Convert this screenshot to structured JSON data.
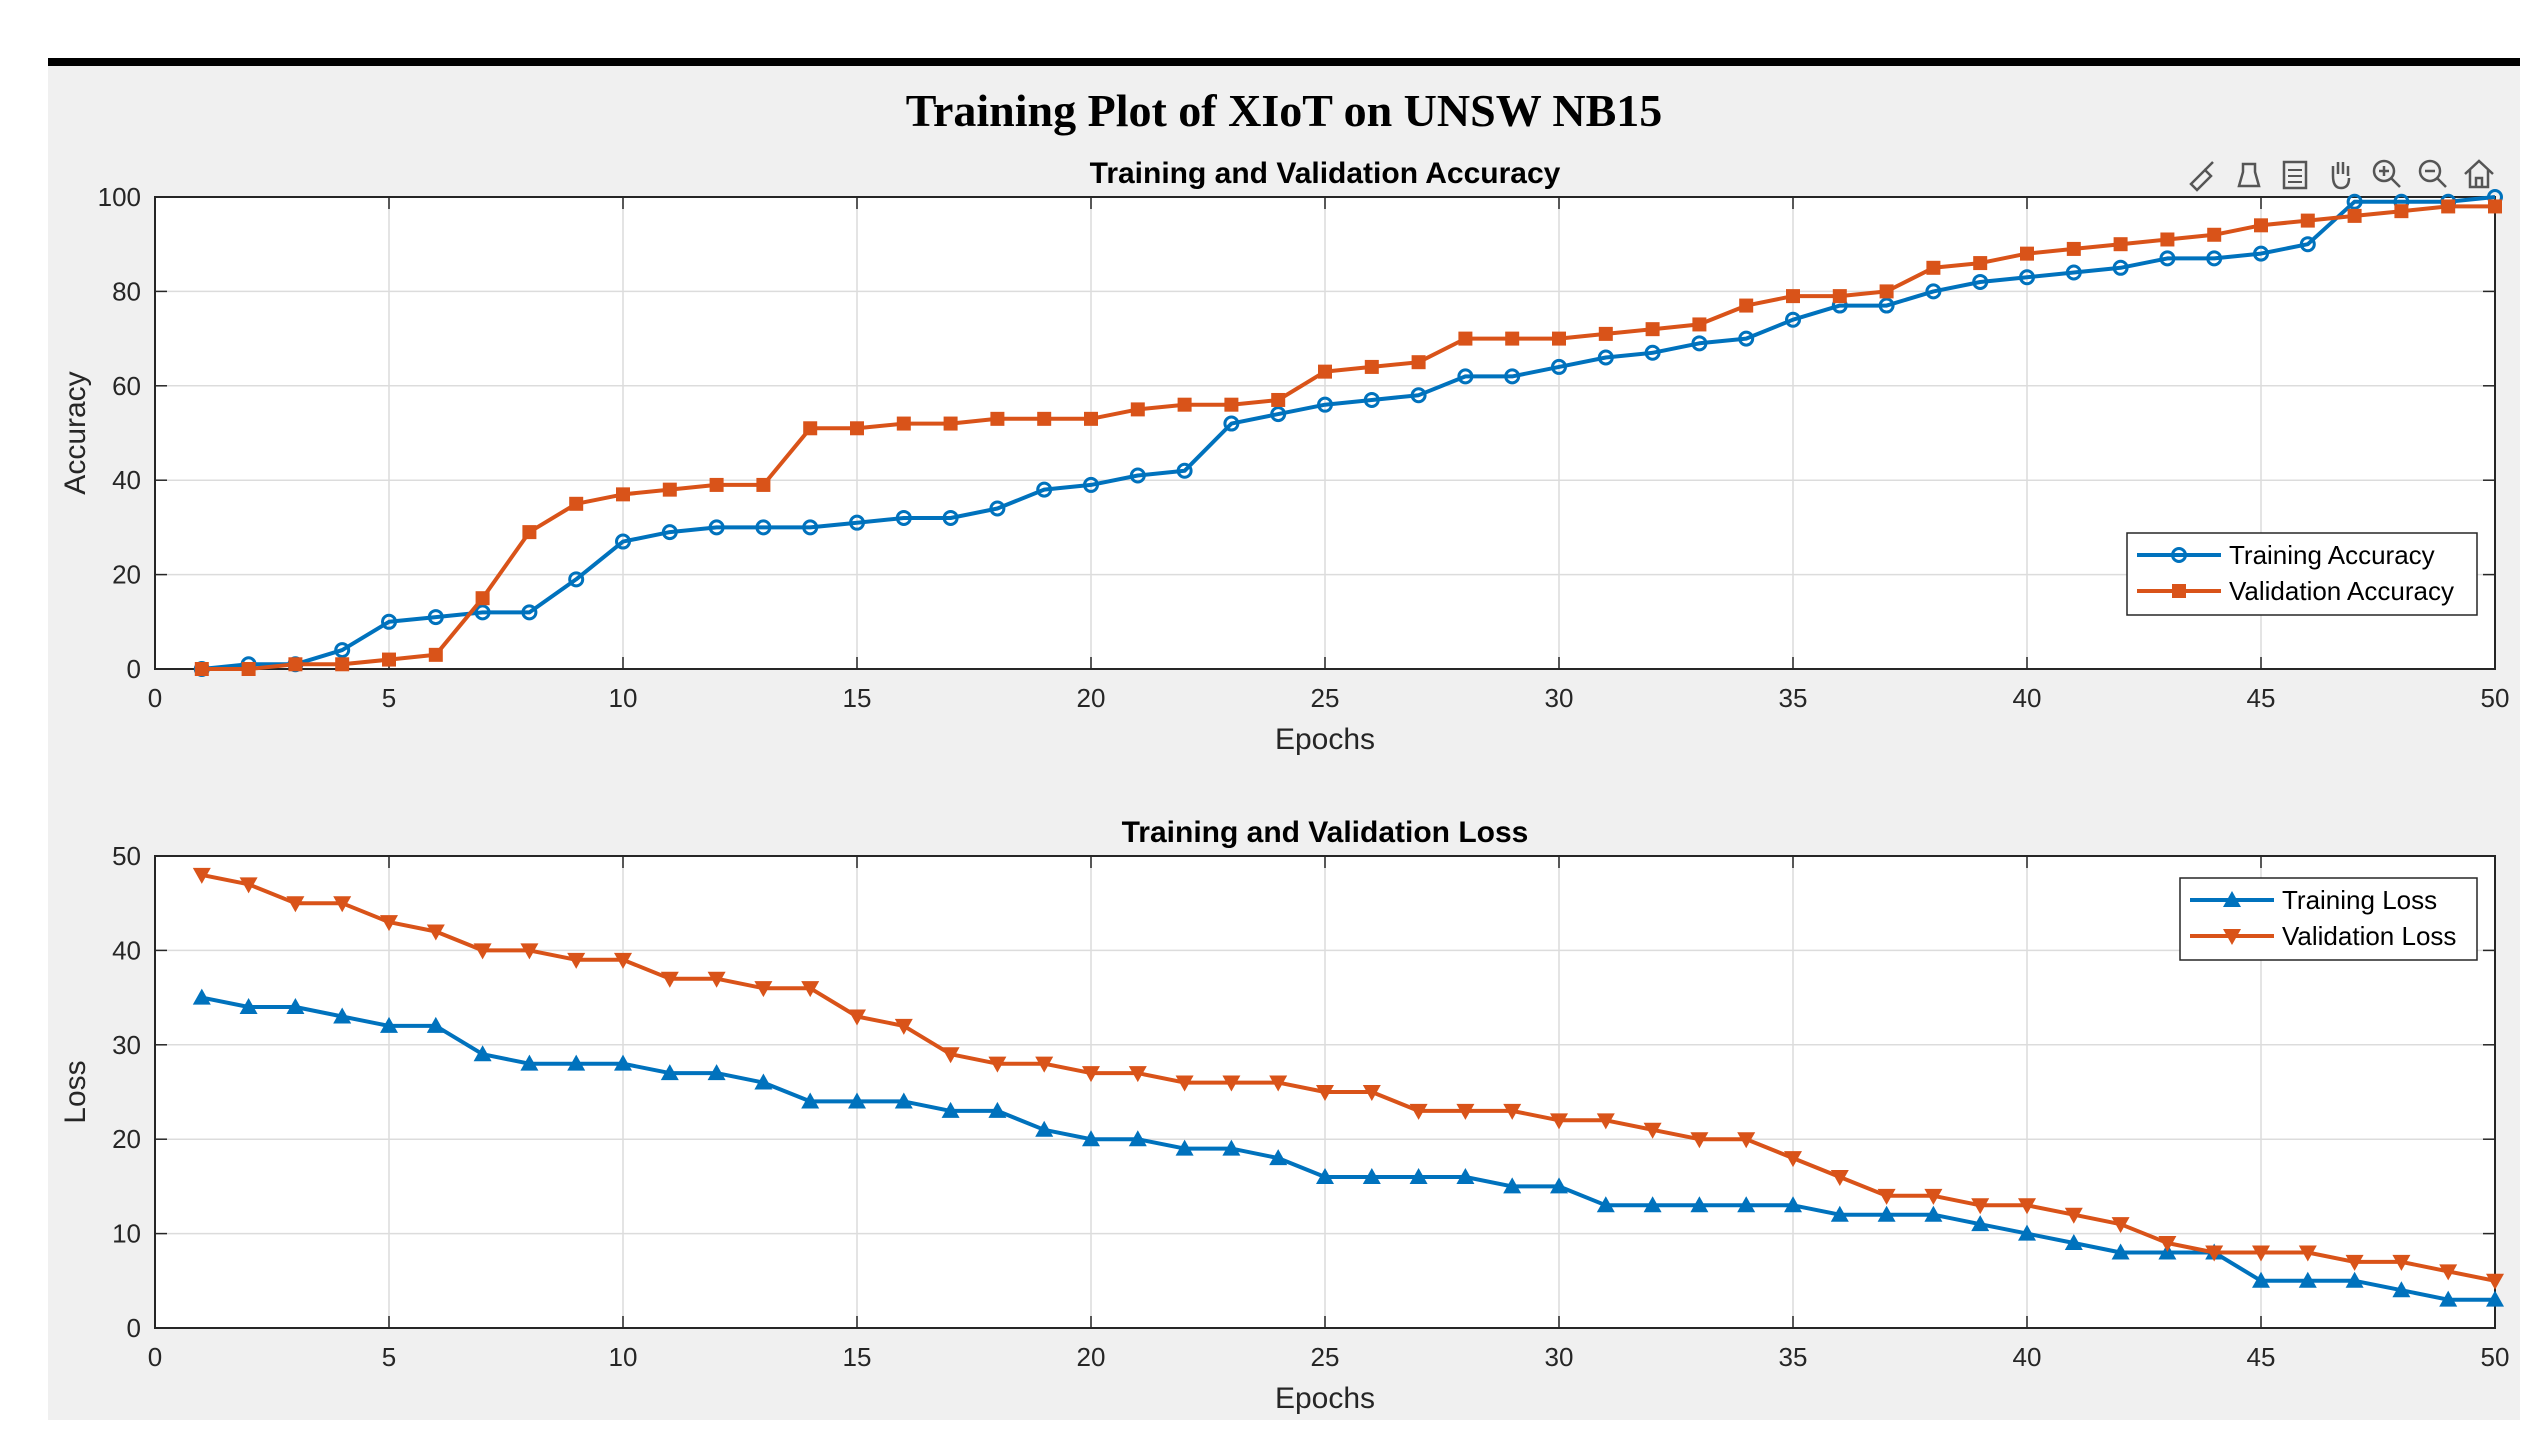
{
  "figure_title": "Training Plot of XIoT on UNSW NB15",
  "toolbar": [
    "brush-icon",
    "data-tips-icon",
    "legend-icon",
    "pan-icon",
    "zoom-in-icon",
    "zoom-out-icon",
    "home-icon"
  ],
  "colors": {
    "blue": "#0072BD",
    "orange": "#D95319",
    "grid": "#DCDCDC",
    "axes_bg": "#FFFFFF",
    "fig_bg": "#F0F0F0"
  },
  "chart_data": [
    {
      "type": "line",
      "title": "Training and Validation Accuracy",
      "xlabel": "Epochs",
      "ylabel": "Accuracy",
      "xlim": [
        0,
        50
      ],
      "ylim": [
        0,
        100
      ],
      "xticks": [
        0,
        5,
        10,
        15,
        20,
        25,
        30,
        35,
        40,
        45,
        50
      ],
      "yticks": [
        0,
        20,
        40,
        60,
        80,
        100
      ],
      "grid": true,
      "legend_position": "east",
      "x": [
        1,
        2,
        3,
        4,
        5,
        6,
        7,
        8,
        9,
        10,
        11,
        12,
        13,
        14,
        15,
        16,
        17,
        18,
        19,
        20,
        21,
        22,
        23,
        24,
        25,
        26,
        27,
        28,
        29,
        30,
        31,
        32,
        33,
        34,
        35,
        36,
        37,
        38,
        39,
        40,
        41,
        42,
        43,
        44,
        45,
        46,
        47,
        48,
        49,
        50
      ],
      "series": [
        {
          "name": "Training Accuracy",
          "color": "#0072BD",
          "marker": "circle",
          "values": [
            0,
            1,
            1,
            4,
            10,
            11,
            12,
            12,
            19,
            27,
            29,
            30,
            30,
            30,
            31,
            32,
            32,
            34,
            38,
            39,
            41,
            42,
            52,
            54,
            56,
            57,
            58,
            62,
            62,
            64,
            66,
            67,
            69,
            70,
            74,
            77,
            77,
            80,
            82,
            83,
            84,
            85,
            87,
            87,
            88,
            90,
            99,
            99,
            99,
            100
          ]
        },
        {
          "name": "Validation Accuracy",
          "color": "#D95319",
          "marker": "square",
          "values": [
            0,
            0,
            1,
            1,
            2,
            3,
            15,
            29,
            35,
            37,
            38,
            39,
            39,
            51,
            51,
            52,
            52,
            53,
            53,
            53,
            55,
            56,
            56,
            57,
            63,
            64,
            65,
            70,
            70,
            70,
            71,
            72,
            73,
            77,
            79,
            79,
            80,
            85,
            86,
            88,
            89,
            90,
            91,
            92,
            94,
            95,
            96,
            97,
            98,
            98
          ]
        }
      ]
    },
    {
      "type": "line",
      "title": "Training and Validation Loss",
      "xlabel": "Epochs",
      "ylabel": "Loss",
      "xlim": [
        0,
        50
      ],
      "ylim": [
        0,
        50
      ],
      "xticks": [
        0,
        5,
        10,
        15,
        20,
        25,
        30,
        35,
        40,
        45,
        50
      ],
      "yticks": [
        0,
        10,
        20,
        30,
        40,
        50
      ],
      "grid": true,
      "legend_position": "northeast",
      "x": [
        1,
        2,
        3,
        4,
        5,
        6,
        7,
        8,
        9,
        10,
        11,
        12,
        13,
        14,
        15,
        16,
        17,
        18,
        19,
        20,
        21,
        22,
        23,
        24,
        25,
        26,
        27,
        28,
        29,
        30,
        31,
        32,
        33,
        34,
        35,
        36,
        37,
        38,
        39,
        40,
        41,
        42,
        43,
        44,
        45,
        46,
        47,
        48,
        49,
        50
      ],
      "series": [
        {
          "name": "Training Loss",
          "color": "#0072BD",
          "marker": "triangle-up",
          "values": [
            35,
            34,
            34,
            33,
            32,
            32,
            29,
            28,
            28,
            28,
            27,
            27,
            26,
            24,
            24,
            24,
            23,
            23,
            21,
            20,
            20,
            19,
            19,
            18,
            16,
            16,
            16,
            16,
            15,
            15,
            13,
            13,
            13,
            13,
            13,
            12,
            12,
            12,
            11,
            10,
            9,
            8,
            8,
            8,
            5,
            5,
            5,
            4,
            3,
            3
          ]
        },
        {
          "name": "Validation Loss",
          "color": "#D95319",
          "marker": "triangle-down",
          "values": [
            48,
            47,
            45,
            45,
            43,
            42,
            40,
            40,
            39,
            39,
            37,
            37,
            36,
            36,
            33,
            32,
            29,
            28,
            28,
            27,
            27,
            26,
            26,
            26,
            25,
            25,
            23,
            23,
            23,
            22,
            22,
            21,
            20,
            20,
            18,
            16,
            14,
            14,
            13,
            13,
            12,
            11,
            9,
            8,
            8,
            8,
            7,
            7,
            6,
            5
          ]
        }
      ]
    }
  ]
}
